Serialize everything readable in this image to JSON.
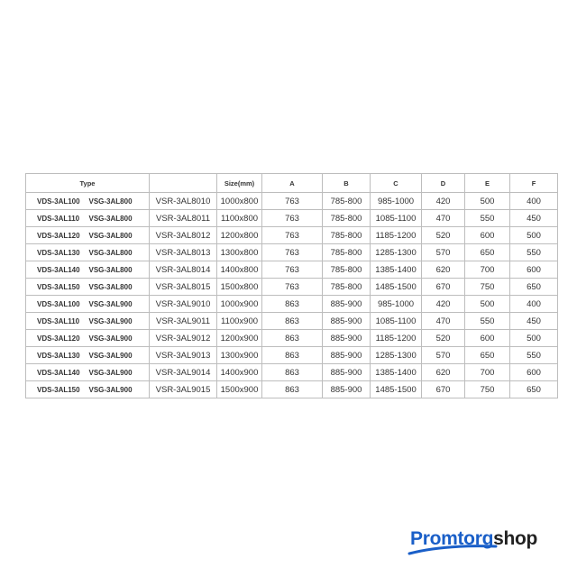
{
  "headers": {
    "type": "Type",
    "blank": "",
    "size": "Size(mm)",
    "a": "A",
    "b": "B",
    "c": "C",
    "d": "D",
    "e": "E",
    "f": "F"
  },
  "rows": [
    [
      "VDS-3AL100",
      "VSG-3AL800",
      "VSR-3AL8010",
      "1000x800",
      "763",
      "785-800",
      "985-1000",
      "420",
      "500",
      "400"
    ],
    [
      "VDS-3AL110",
      "VSG-3AL800",
      "VSR-3AL8011",
      "1100x800",
      "763",
      "785-800",
      "1085-1100",
      "470",
      "550",
      "450"
    ],
    [
      "VDS-3AL120",
      "VSG-3AL800",
      "VSR-3AL8012",
      "1200x800",
      "763",
      "785-800",
      "1185-1200",
      "520",
      "600",
      "500"
    ],
    [
      "VDS-3AL130",
      "VSG-3AL800",
      "VSR-3AL8013",
      "1300x800",
      "763",
      "785-800",
      "1285-1300",
      "570",
      "650",
      "550"
    ],
    [
      "VDS-3AL140",
      "VSG-3AL800",
      "VSR-3AL8014",
      "1400x800",
      "763",
      "785-800",
      "1385-1400",
      "620",
      "700",
      "600"
    ],
    [
      "VDS-3AL150",
      "VSG-3AL800",
      "VSR-3AL8015",
      "1500x800",
      "763",
      "785-800",
      "1485-1500",
      "670",
      "750",
      "650"
    ],
    [
      "VDS-3AL100",
      "VSG-3AL900",
      "VSR-3AL9010",
      "1000x900",
      "863",
      "885-900",
      "985-1000",
      "420",
      "500",
      "400"
    ],
    [
      "VDS-3AL110",
      "VSG-3AL900",
      "VSR-3AL9011",
      "1100x900",
      "863",
      "885-900",
      "1085-1100",
      "470",
      "550",
      "450"
    ],
    [
      "VDS-3AL120",
      "VSG-3AL900",
      "VSR-3AL9012",
      "1200x900",
      "863",
      "885-900",
      "1185-1200",
      "520",
      "600",
      "500"
    ],
    [
      "VDS-3AL130",
      "VSG-3AL900",
      "VSR-3AL9013",
      "1300x900",
      "863",
      "885-900",
      "1285-1300",
      "570",
      "650",
      "550"
    ],
    [
      "VDS-3AL140",
      "VSG-3AL900",
      "VSR-3AL9014",
      "1400x900",
      "863",
      "885-900",
      "1385-1400",
      "620",
      "700",
      "600"
    ],
    [
      "VDS-3AL150",
      "VSG-3AL900",
      "VSR-3AL9015",
      "1500x900",
      "863",
      "885-900",
      "1485-1500",
      "670",
      "750",
      "650"
    ]
  ],
  "logo": {
    "part1": "Promtorg",
    "part2": "shop",
    "brand_color": "#1a5fc8"
  }
}
